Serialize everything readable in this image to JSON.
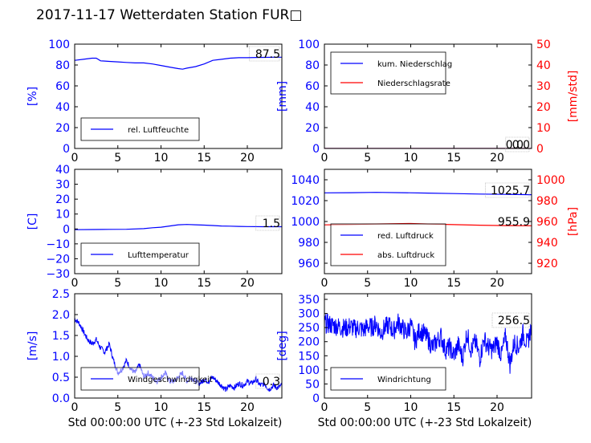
{
  "title": "2017-11-17 Wetterdaten Station FUR□",
  "chart_data": [
    {
      "type": "line",
      "xlim": [
        0,
        24
      ],
      "xticks": [
        "0",
        "5",
        "10",
        "15",
        "20"
      ],
      "ylim": [
        0,
        100
      ],
      "yticks": [
        "0",
        "20",
        "40",
        "60",
        "80",
        "100"
      ],
      "ylabel": "[%]",
      "ylabel_color": "#0000ff",
      "tick_color": "#0000ff",
      "legend": {
        "position": "lower-left",
        "entries": [
          {
            "label": "rel. Luftfeuchte",
            "color": "#0000ff"
          }
        ]
      },
      "annotation": "87.5",
      "series": [
        {
          "name": "rel. Luftfeuchte",
          "color": "#0000ff",
          "x": [
            0,
            1,
            2,
            2.5,
            3,
            4,
            5,
            6,
            7,
            8,
            9,
            10,
            11,
            12,
            12.5,
            13,
            14,
            15,
            16,
            17,
            18,
            19,
            20,
            21,
            22,
            23,
            24
          ],
          "y": [
            84.5,
            85.5,
            86.5,
            86.5,
            84,
            83.5,
            83,
            82.5,
            82,
            82,
            81,
            79.5,
            78,
            76.5,
            76,
            77,
            78.5,
            81,
            84.5,
            85.5,
            86.5,
            87,
            87,
            87.2,
            87.3,
            87.5,
            87.5
          ]
        }
      ]
    },
    {
      "type": "line",
      "xlim": [
        0,
        24
      ],
      "xticks": [
        "0",
        "5",
        "10",
        "15",
        "20"
      ],
      "ylim": [
        0,
        100
      ],
      "yticks": [
        "0",
        "20",
        "40",
        "60",
        "80",
        "100"
      ],
      "ylabel": "[mm]",
      "ylabel_color": "#0000ff",
      "tick_color": "#0000ff",
      "y2lim": [
        0,
        50
      ],
      "y2ticks": [
        "0",
        "10",
        "20",
        "30",
        "40",
        "50"
      ],
      "y2label": "[mm/std]",
      "y2_color": "#ff0000",
      "legend": {
        "position": "upper-left",
        "entries": [
          {
            "label": "kum. Niederschlag",
            "color": "#0000ff"
          },
          {
            "label": "Niederschlagsrate",
            "color": "#ff0000"
          }
        ]
      },
      "annotation": "0.0",
      "annotation2": "0.0",
      "series": [
        {
          "name": "kum. Niederschlag",
          "color": "#0000ff",
          "axis": "left",
          "x": [
            0,
            24
          ],
          "y": [
            0,
            0
          ]
        },
        {
          "name": "Niederschlagsrate",
          "color": "#ff0000",
          "axis": "right",
          "x": [
            0,
            24
          ],
          "y": [
            0,
            0
          ]
        }
      ]
    },
    {
      "type": "line",
      "xlim": [
        0,
        24
      ],
      "xticks": [
        "0",
        "5",
        "10",
        "15",
        "20"
      ],
      "ylim": [
        -30,
        40
      ],
      "yticks": [
        "−30",
        "−20",
        "−10",
        "0",
        "10",
        "20",
        "30",
        "40"
      ],
      "ylabel": "[C]",
      "ylabel_color": "#0000ff",
      "tick_color": "#0000ff",
      "legend": {
        "position": "lower-left",
        "entries": [
          {
            "label": "Lufttemperatur",
            "color": "#0000ff"
          }
        ]
      },
      "annotation": "1.5",
      "series": [
        {
          "name": "Lufttemperatur",
          "color": "#0000ff",
          "x": [
            0,
            2,
            4,
            6,
            8,
            9,
            10,
            11,
            12,
            13,
            14,
            15,
            16,
            17,
            18,
            19,
            20,
            22,
            24
          ],
          "y": [
            -0.5,
            -0.4,
            -0.3,
            -0.2,
            0.2,
            0.8,
            1.2,
            2,
            2.8,
            3,
            2.8,
            2.6,
            2.3,
            2,
            1.9,
            1.7,
            1.6,
            1.5,
            1.5
          ]
        }
      ]
    },
    {
      "type": "line",
      "xlim": [
        0,
        24
      ],
      "xticks": [
        "0",
        "5",
        "10",
        "15",
        "20"
      ],
      "ylim": [
        950,
        1050
      ],
      "yticks": [
        "960",
        "980",
        "1000",
        "1020",
        "1040"
      ],
      "tick_color": "#0000ff",
      "y2lim": [
        910,
        1010
      ],
      "y2ticks": [
        "920",
        "940",
        "960",
        "980",
        "1000"
      ],
      "y2label": "[hPa]",
      "y2_color": "#ff0000",
      "legend": {
        "position": "lower-left",
        "entries": [
          {
            "label": "red. Luftdruck",
            "color": "#0000ff"
          },
          {
            "label": "abs. Luftdruck",
            "color": "#ff0000"
          }
        ]
      },
      "annotation": "1025.7",
      "annotation2": "955.9",
      "series": [
        {
          "name": "red. Luftdruck",
          "color": "#0000ff",
          "axis": "left",
          "x": [
            0,
            3,
            6,
            9,
            12,
            15,
            18,
            21,
            24
          ],
          "y": [
            1027.5,
            1027.6,
            1027.9,
            1027.6,
            1027.2,
            1026.8,
            1026.3,
            1026.0,
            1025.7
          ]
        },
        {
          "name": "abs. Luftdruck",
          "color": "#ff0000",
          "axis": "right",
          "x": [
            0,
            3,
            6,
            9,
            10,
            12,
            15,
            18,
            21,
            24
          ],
          "y": [
            956.8,
            957.1,
            957.6,
            958.0,
            958.1,
            957.6,
            957.0,
            956.5,
            956.1,
            955.9
          ]
        }
      ]
    },
    {
      "type": "line",
      "xlim": [
        0,
        24
      ],
      "xticks": [
        "0",
        "5",
        "10",
        "15",
        "20"
      ],
      "xlabel": "Std 00:00:00 UTC (+-23 Std Lokalzeit)",
      "ylim": [
        0,
        2.5
      ],
      "yticks": [
        "0.0",
        "0.5",
        "1.0",
        "1.5",
        "2.0",
        "2.5"
      ],
      "ylabel": "[m/s]",
      "ylabel_color": "#0000ff",
      "tick_color": "#0000ff",
      "legend": {
        "position": "lower-left",
        "entries": [
          {
            "label": "Windgeschwindigkeit",
            "color": "#0000ff"
          }
        ]
      },
      "annotation": "0.3",
      "series": [
        {
          "name": "Windgeschwindigkeit",
          "color": "#0000ff",
          "noise": 0.45,
          "x": [
            0,
            0.5,
            1,
            1.5,
            2,
            2.5,
            3,
            3.5,
            4,
            4.5,
            5,
            5.5,
            6,
            6.5,
            7,
            7.5,
            8,
            8.5,
            9,
            9.5,
            10,
            10.5,
            11,
            11.5,
            12,
            12.5,
            13,
            13.5,
            14,
            14.5,
            15,
            15.5,
            16,
            16.5,
            17,
            17.5,
            18,
            18.5,
            19,
            19.5,
            20,
            20.5,
            21,
            21.5,
            22,
            22.5,
            23,
            23.5,
            24
          ],
          "y": [
            1.9,
            1.8,
            1.6,
            1.4,
            1.3,
            1.4,
            1.2,
            1.1,
            1.3,
            0.9,
            0.6,
            0.7,
            0.9,
            0.7,
            0.6,
            0.8,
            0.5,
            0.6,
            0.5,
            0.4,
            0.5,
            0.6,
            0.4,
            0.4,
            0.5,
            0.6,
            0.4,
            0.5,
            0.4,
            0.35,
            0.45,
            0.4,
            0.5,
            0.4,
            0.3,
            0.2,
            0.3,
            0.25,
            0.35,
            0.3,
            0.4,
            0.35,
            0.45,
            0.3,
            0.35,
            0.2,
            0.3,
            0.25,
            0.3
          ]
        }
      ]
    },
    {
      "type": "line",
      "xlim": [
        0,
        24
      ],
      "xticks": [
        "0",
        "5",
        "10",
        "15",
        "20"
      ],
      "xlabel": "Std 00:00:00 UTC (+-23 Std Lokalzeit)",
      "ylim": [
        0,
        370
      ],
      "yticks": [
        "0",
        "50",
        "100",
        "150",
        "200",
        "250",
        "300",
        "350"
      ],
      "ylabel": "[deg]",
      "ylabel_color": "#0000ff",
      "tick_color": "#0000ff",
      "legend": {
        "position": "lower-left",
        "entries": [
          {
            "label": "Windrichtung",
            "color": "#0000ff"
          }
        ]
      },
      "annotation": "256.5",
      "series": [
        {
          "name": "Windrichtung",
          "color": "#0000ff",
          "noise": 1.6,
          "x": [
            0,
            0.5,
            1,
            1.5,
            2,
            2.5,
            3,
            3.5,
            4,
            4.5,
            5,
            5.5,
            6,
            6.5,
            7,
            7.5,
            8,
            8.5,
            9,
            9.5,
            10,
            10.5,
            11,
            11.5,
            12,
            12.5,
            13,
            13.5,
            14,
            14.5,
            15,
            15.5,
            16,
            16.5,
            17,
            17.5,
            18,
            18.5,
            19,
            19.5,
            20,
            20.5,
            21,
            21.5,
            22,
            22.5,
            23,
            23.5,
            24
          ],
          "y": [
            265,
            262,
            258,
            255,
            250,
            248,
            255,
            245,
            250,
            240,
            255,
            250,
            265,
            230,
            250,
            260,
            235,
            270,
            250,
            230,
            260,
            200,
            240,
            230,
            210,
            180,
            200,
            220,
            170,
            180,
            150,
            190,
            140,
            230,
            170,
            200,
            140,
            210,
            180,
            170,
            200,
            150,
            220,
            120,
            200,
            180,
            230,
            190,
            256
          ]
        }
      ]
    }
  ]
}
